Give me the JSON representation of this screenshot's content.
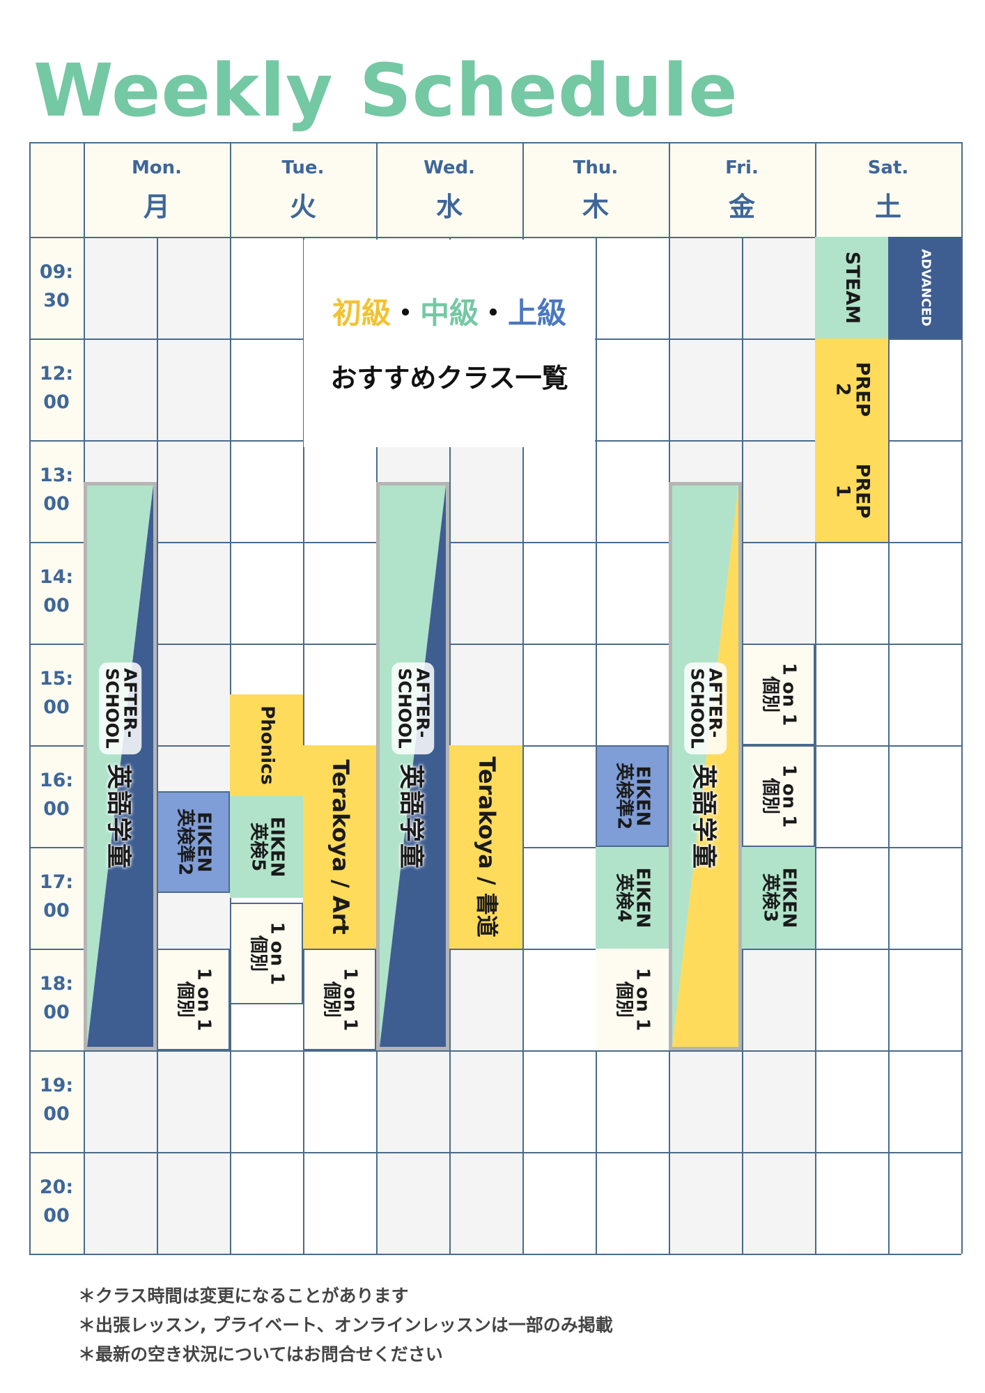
{
  "title": "Weekly Schedule",
  "days": [
    {
      "en": "Mon.",
      "jp": "月"
    },
    {
      "en": "Tue.",
      "jp": "火"
    },
    {
      "en": "Wed.",
      "jp": "水"
    },
    {
      "en": "Thu.",
      "jp": "木"
    },
    {
      "en": "Fri.",
      "jp": "金"
    },
    {
      "en": "Sat.",
      "jp": "土"
    }
  ],
  "times": [
    {
      "hh": "09:",
      "mm": "30"
    },
    {
      "hh": "12:",
      "mm": "00"
    },
    {
      "hh": "13:",
      "mm": "00"
    },
    {
      "hh": "14:",
      "mm": "00"
    },
    {
      "hh": "15:",
      "mm": "00"
    },
    {
      "hh": "16:",
      "mm": "00"
    },
    {
      "hh": "17:",
      "mm": "00"
    },
    {
      "hh": "18:",
      "mm": "00"
    },
    {
      "hh": "19:",
      "mm": "00"
    },
    {
      "hh": "20:",
      "mm": "00"
    }
  ],
  "center": {
    "levels": [
      {
        "text": "初級",
        "color": "#f2c230"
      },
      {
        "text": "・",
        "color": "#111111"
      },
      {
        "text": "中級",
        "color": "#74c8a4"
      },
      {
        "text": "・",
        "color": "#111111"
      },
      {
        "text": "上級",
        "color": "#4a78c0"
      }
    ],
    "recommend": "おすすめクラス一覧"
  },
  "classes": {
    "after_school_en": "AFTER-\nSCHOOL",
    "after_school_jp": "英語学童",
    "eiken_pre2": "EIKEN\n英検準2",
    "eiken5": "EIKEN\n英検5",
    "eiken4": "EIKEN\n英検4",
    "eiken3": "EIKEN\n英検3",
    "one_on_one": "1 on 1\n個別",
    "phonics": "Phonics",
    "terakoya_art": "Terakoya / Art",
    "terakoya_shodo": "Terakoya / 書道",
    "steam": "STEAM",
    "advanced": "ADVANCED",
    "prep2": "PREP\n2",
    "prep1": "PREP\n1"
  },
  "notes": [
    "＊クラス時間は変更になることがあります",
    "＊出張レッスン, プライベート、オンラインレッスンは一部のみ掲載",
    "＊最新の空き状況についてはお問合せください"
  ],
  "colors": {
    "title": "#74c8a4",
    "header_bg": "#fefcf0",
    "grid_line": "#4a6a8c",
    "gray_cell": "#f4f4f4",
    "yellow": "#fedb5b",
    "mint": "#b0e3ca",
    "blue": "#7f9dd6",
    "navy": "#3e5e92",
    "cream": "#fefcf0",
    "day_text": "#3e6699"
  }
}
